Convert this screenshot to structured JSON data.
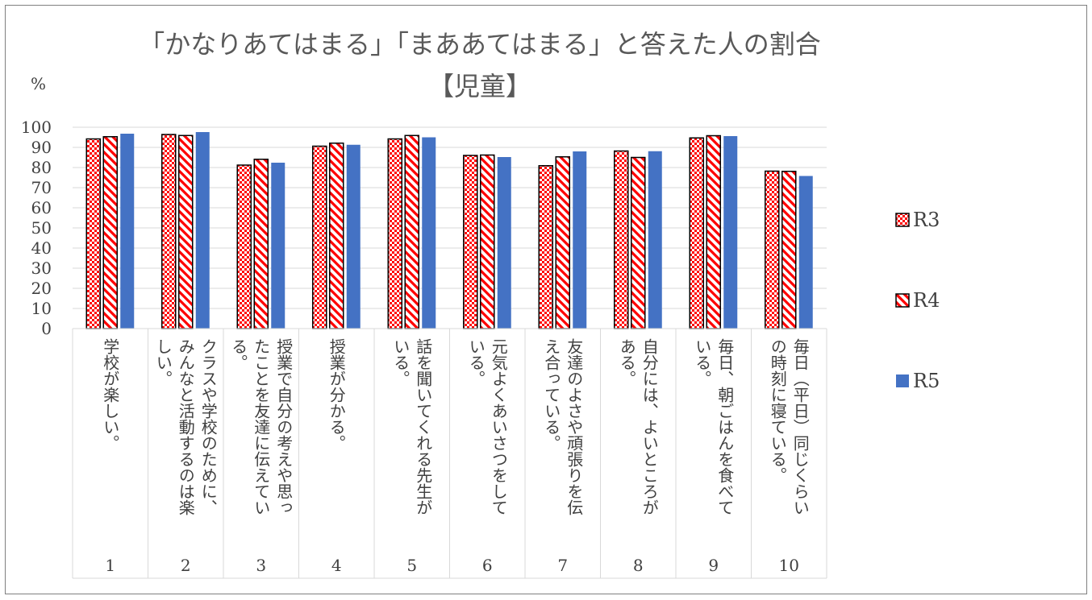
{
  "chart_data": {
    "type": "bar",
    "title_line1": "「かなりあてはまる」「まああてはまる」と答えた人の割合",
    "title_line2": "【児童】",
    "ylabel": "%",
    "ylim": [
      0,
      100
    ],
    "yticks": [
      "0",
      "10",
      "20",
      "30",
      "40",
      "50",
      "60",
      "70",
      "80",
      "90",
      "100"
    ],
    "grid": true,
    "legend_position": "right",
    "categories": [
      "1",
      "2",
      "3",
      "4",
      "5",
      "6",
      "7",
      "8",
      "9",
      "10"
    ],
    "category_texts": [
      "学校が楽しい。",
      "クラスや学校のために、\nみんなと活動するのは楽\nしい。",
      "授業で自分の考えや思っ\nたことを友達に伝えてい\nる。",
      "授業が分かる。",
      "話を聞いてくれる先生が\nいる。",
      "元気よくあいさつをして\nいる。",
      "友達のよさや頑張りを伝\nえ合っている。",
      "自分には、よいところが\nある。",
      "毎日、朝ごはんを食べて\nいる。",
      "毎日（平日）同じくらい\nの時刻に寝ている。"
    ],
    "series": [
      {
        "name": "R3",
        "pattern": "checker",
        "color": "#ff0000",
        "values": [
          94.2,
          96.4,
          81.2,
          90.6,
          94.2,
          86,
          80.9,
          88.2,
          94.7,
          78.2
        ]
      },
      {
        "name": "R4",
        "pattern": "diagonal",
        "color": "#ff0000",
        "values": [
          95.3,
          95.9,
          84.1,
          92.1,
          95.9,
          86.2,
          85.3,
          85,
          95.8,
          78.1
        ]
      },
      {
        "name": "R5",
        "pattern": "solid",
        "color": "#4472c4",
        "values": [
          96.8,
          97.6,
          82.4,
          91.3,
          95,
          85.2,
          88,
          88.1,
          95.6,
          75.8
        ]
      }
    ]
  }
}
